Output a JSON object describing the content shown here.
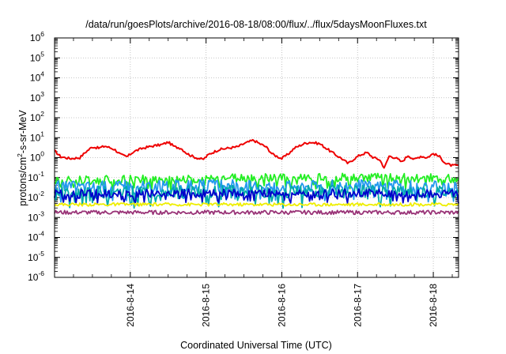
{
  "chart_data": {
    "type": "line",
    "title": "/data/run/goesPlots/archive/2016-08-18/08:00/flux/../flux/5daysMoonFluxes.txt",
    "xlabel": "Coordinated Universal Time (UTC)",
    "ylabel_parts": [
      "protons/cm",
      "2",
      "-s-sr-MeV"
    ],
    "yscale": "log",
    "ylim": [
      1e-06,
      1000000.0
    ],
    "y_ticks": [
      {
        "base": "10",
        "exp": "-6",
        "value": 1e-06
      },
      {
        "base": "10",
        "exp": "-5",
        "value": 1e-05
      },
      {
        "base": "10",
        "exp": "-4",
        "value": 0.0001
      },
      {
        "base": "10",
        "exp": "-3",
        "value": 0.001
      },
      {
        "base": "10",
        "exp": "-2",
        "value": 0.01
      },
      {
        "base": "10",
        "exp": "-1",
        "value": 0.1
      },
      {
        "base": "10",
        "exp": "0",
        "value": 1
      },
      {
        "base": "10",
        "exp": "1",
        "value": 10
      },
      {
        "base": "10",
        "exp": "2",
        "value": 100
      },
      {
        "base": "10",
        "exp": "3",
        "value": 1000
      },
      {
        "base": "10",
        "exp": "4",
        "value": 10000
      },
      {
        "base": "10",
        "exp": "5",
        "value": 100000
      },
      {
        "base": "10",
        "exp": "6",
        "value": 1000000
      }
    ],
    "xlim": [
      "2016-08-13T00:00",
      "2016-08-18T08:00"
    ],
    "x_ticks": [
      {
        "label": "2016-8-14",
        "time": "2016-08-14T00:00"
      },
      {
        "label": "2016-8-15",
        "time": "2016-08-15T00:00"
      },
      {
        "label": "2016-8-16",
        "time": "2016-08-16T00:00"
      },
      {
        "label": "2016-8-17",
        "time": "2016-08-17T00:00"
      },
      {
        "label": "2016-8-18",
        "time": "2016-08-18T00:00"
      }
    ],
    "grid": true,
    "legend": "none",
    "series": [
      {
        "color": "#ee0000",
        "noise": 0.06,
        "points": [
          [
            "2016-08-13T00:00",
            2.2
          ],
          [
            "2016-08-13T02:00",
            1.1
          ],
          [
            "2016-08-13T05:00",
            0.9
          ],
          [
            "2016-08-13T08:00",
            1.0
          ],
          [
            "2016-08-13T10:00",
            2.0
          ],
          [
            "2016-08-13T12:00",
            3.5
          ],
          [
            "2016-08-13T14:00",
            3.0
          ],
          [
            "2016-08-13T16:00",
            3.8
          ],
          [
            "2016-08-13T19:00",
            2.6
          ],
          [
            "2016-08-13T21:00",
            1.4
          ],
          [
            "2016-08-13T23:00",
            1.1
          ],
          [
            "2016-08-14T01:00",
            2.0
          ],
          [
            "2016-08-14T04:00",
            3.0
          ],
          [
            "2016-08-14T07:00",
            3.8
          ],
          [
            "2016-08-14T10:00",
            4.5
          ],
          [
            "2016-08-14T12:00",
            6.0
          ],
          [
            "2016-08-14T14:00",
            3.5
          ],
          [
            "2016-08-14T16:00",
            3.0
          ],
          [
            "2016-08-14T18:00",
            1.6
          ],
          [
            "2016-08-14T20:00",
            1.1
          ],
          [
            "2016-08-14T23:00",
            0.8
          ],
          [
            "2016-08-15T01:00",
            1.5
          ],
          [
            "2016-08-15T04:00",
            2.5
          ],
          [
            "2016-08-15T07:00",
            3.0
          ],
          [
            "2016-08-15T10:00",
            3.5
          ],
          [
            "2016-08-15T12:00",
            5.0
          ],
          [
            "2016-08-15T15:00",
            7.5
          ],
          [
            "2016-08-15T17:00",
            5.0
          ],
          [
            "2016-08-15T19:00",
            3.5
          ],
          [
            "2016-08-15T21:00",
            1.5
          ],
          [
            "2016-08-16T00:00",
            0.9
          ],
          [
            "2016-08-16T02:00",
            1.5
          ],
          [
            "2016-08-16T04:00",
            3.0
          ],
          [
            "2016-08-16T07:00",
            5.0
          ],
          [
            "2016-08-16T09:00",
            6.0
          ],
          [
            "2016-08-16T12:00",
            5.0
          ],
          [
            "2016-08-16T14:00",
            3.0
          ],
          [
            "2016-08-16T17:00",
            1.4
          ],
          [
            "2016-08-16T19:00",
            0.9
          ],
          [
            "2016-08-16T21:00",
            0.5
          ],
          [
            "2016-08-16T23:00",
            0.9
          ],
          [
            "2016-08-17T01:00",
            1.4
          ],
          [
            "2016-08-17T03:00",
            1.8
          ],
          [
            "2016-08-17T05:00",
            1.0
          ],
          [
            "2016-08-17T07:00",
            0.8
          ],
          [
            "2016-08-17T08:30",
            0.3
          ],
          [
            "2016-08-17T10:00",
            1.2
          ],
          [
            "2016-08-17T12:00",
            1.0
          ],
          [
            "2016-08-17T14:00",
            0.6
          ],
          [
            "2016-08-17T16:00",
            1.3
          ],
          [
            "2016-08-17T18:00",
            0.8
          ],
          [
            "2016-08-17T20:00",
            1.2
          ],
          [
            "2016-08-17T22:00",
            1.0
          ],
          [
            "2016-08-18T00:00",
            1.6
          ],
          [
            "2016-08-18T02:00",
            1.1
          ],
          [
            "2016-08-18T04:00",
            0.5
          ],
          [
            "2016-08-18T06:00",
            0.4
          ],
          [
            "2016-08-18T08:00",
            0.4
          ]
        ]
      },
      {
        "color": "#22ee22",
        "noise": 0.22,
        "points": [
          [
            "2016-08-13T00:00",
            0.07
          ],
          [
            "2016-08-15T00:00",
            0.09
          ],
          [
            "2016-08-17T00:00",
            0.1
          ],
          [
            "2016-08-18T08:00",
            0.09
          ]
        ]
      },
      {
        "color": "#2299ee",
        "noise": 0.3,
        "points": [
          [
            "2016-08-13T00:00",
            0.035
          ],
          [
            "2016-08-15T00:00",
            0.04
          ],
          [
            "2016-08-17T00:00",
            0.04
          ],
          [
            "2016-08-18T08:00",
            0.035
          ]
        ]
      },
      {
        "color": "#00aaaa",
        "noise": 0.32,
        "points": [
          [
            "2016-08-13T00:00",
            0.018
          ],
          [
            "2016-08-15T00:00",
            0.02
          ],
          [
            "2016-08-17T00:00",
            0.02
          ],
          [
            "2016-08-18T08:00",
            0.018
          ]
        ]
      },
      {
        "color": "#0000cc",
        "noise": 0.2,
        "points": [
          [
            "2016-08-13T00:00",
            0.016
          ],
          [
            "2016-08-15T00:00",
            0.017
          ],
          [
            "2016-08-17T00:00",
            0.017
          ],
          [
            "2016-08-18T08:00",
            0.016
          ]
        ]
      },
      {
        "color": "#eeee00",
        "noise": 0.08,
        "points": [
          [
            "2016-08-13T00:00",
            0.0045
          ],
          [
            "2016-08-18T08:00",
            0.0045
          ]
        ]
      },
      {
        "color": "#993377",
        "noise": 0.1,
        "points": [
          [
            "2016-08-13T00:00",
            0.0018
          ],
          [
            "2016-08-18T08:00",
            0.0018
          ]
        ]
      }
    ]
  }
}
